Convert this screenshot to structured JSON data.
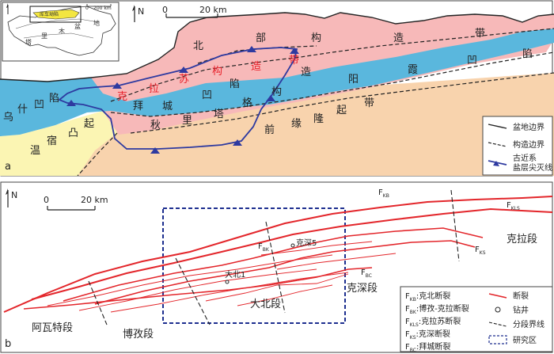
{
  "panel_a": {
    "label": "a",
    "north": "N",
    "scale": {
      "zero": "0",
      "value": "20 km"
    },
    "inset": {
      "scale_zero": "0",
      "scale_value": "200 km",
      "highlight": "库车坳陷",
      "chars": [
        "塔",
        "里",
        "木",
        "盆",
        "地"
      ]
    },
    "units": {
      "kuqa_fold_belt": [
        "克",
        "拉",
        "苏",
        "构",
        "造",
        "带"
      ],
      "north_belt": [
        "北",
        "部",
        "构",
        "造",
        "带"
      ],
      "yangxia": [
        "阳",
        "霞",
        "凹",
        "陷"
      ],
      "wushi": [
        "乌",
        "什",
        "凹",
        "陷"
      ],
      "baicheng": [
        "拜",
        "城",
        "凹",
        "陷"
      ],
      "qiulitag": [
        "秋",
        "里",
        "塔",
        "格",
        "构",
        "造",
        "带"
      ],
      "front_uplift": [
        "前",
        "缘",
        "隆",
        "起",
        "带"
      ],
      "wensu": [
        "温",
        "宿",
        "凸",
        "起"
      ]
    },
    "legend": [
      {
        "key": "basin-boundary",
        "label": "盆地边界"
      },
      {
        "key": "structure-boundary",
        "label": "构造边界"
      },
      {
        "key": "salt-pinchout",
        "label": "古近系\n盐层尖灭线"
      }
    ]
  },
  "panel_b": {
    "label": "b",
    "north": "N",
    "scale": {
      "zero": "0",
      "value": "20 km"
    },
    "faults": {
      "kb": "KB",
      "kls": "KLS",
      "bk": "BK",
      "bc": "BC",
      "ks": "KS"
    },
    "wells": [
      "克深5",
      "大北1"
    ],
    "segments": [
      "阿瓦特段",
      "博孜段",
      "大北段",
      "克深段",
      "克拉段"
    ],
    "fault_legend": [
      {
        "sub": "KB",
        "text": ":克北断裂"
      },
      {
        "sub": "BK",
        "text": ":博孜-克拉断裂"
      },
      {
        "sub": "KLS",
        "text": ":克拉苏断裂"
      },
      {
        "sub": "KS",
        "text": ":克深断裂"
      },
      {
        "sub": "BC",
        "text": ":拜城断裂"
      }
    ],
    "symbol_legend": [
      "断裂",
      "钻井",
      "分段界线",
      "研究区"
    ]
  },
  "colors": {
    "fold_belt": "#f7b9b9",
    "depression": "#5ab7dd",
    "uplift": "#f8d3ad",
    "wensu": "#fbf5b3",
    "red_text": "#e8202a",
    "fault": "#e3262b",
    "salt_line": "#2e3aa0",
    "study_area": "#1d2f8f",
    "inset_highlight": "#f3e640"
  }
}
